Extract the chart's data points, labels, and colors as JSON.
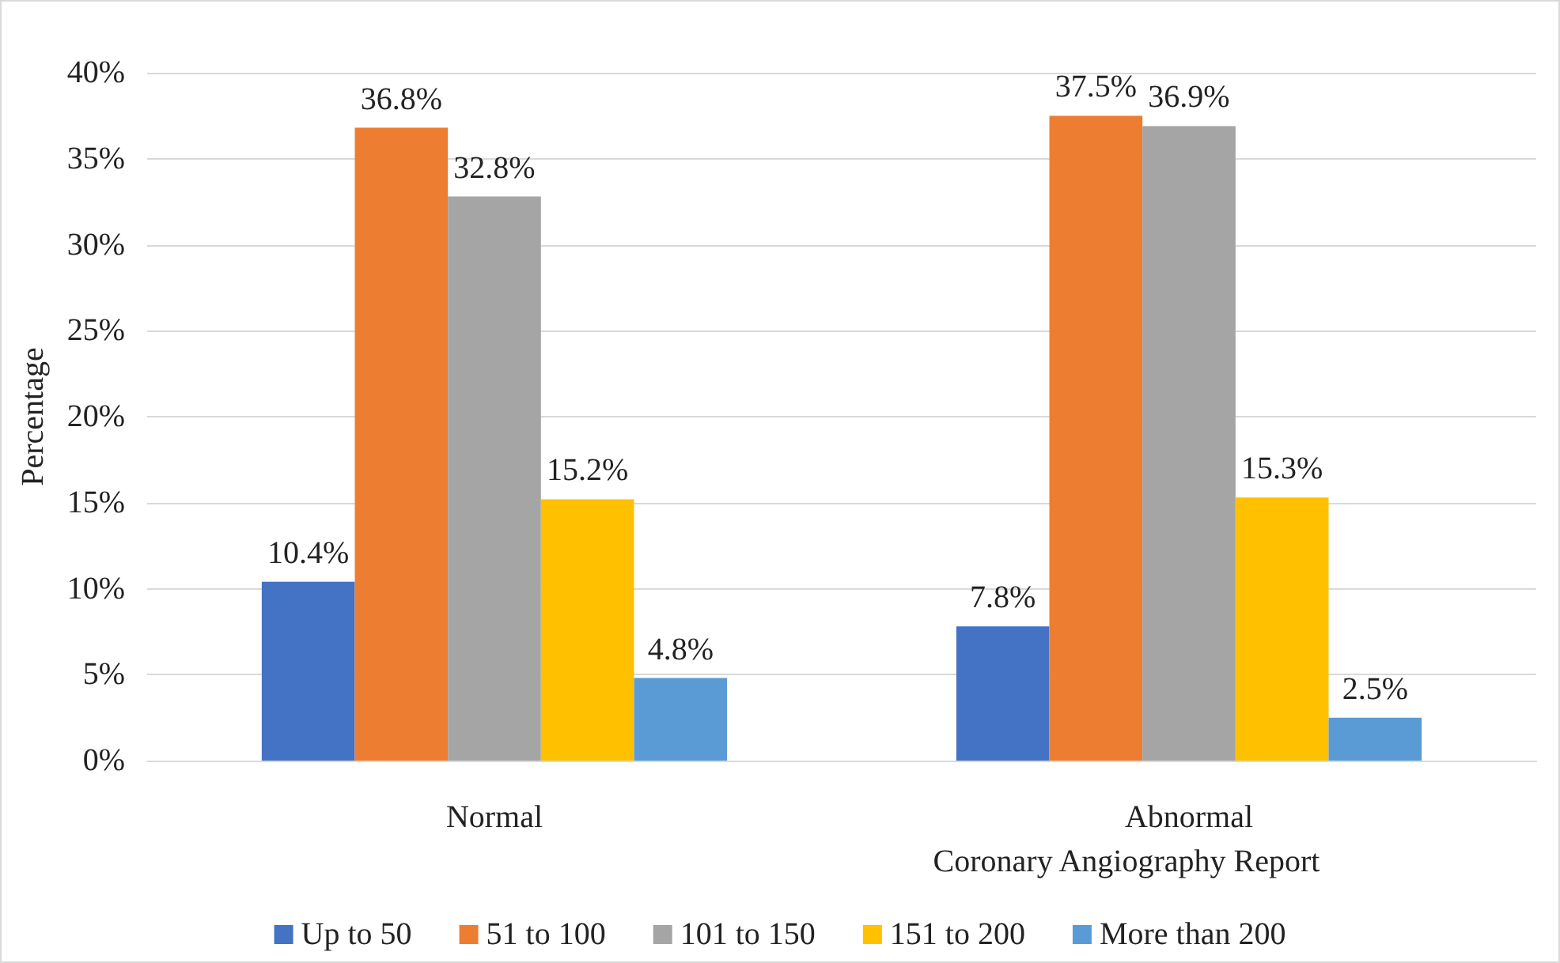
{
  "chart_data": {
    "type": "bar",
    "xlabel": "Coronary Angiography Report",
    "ylabel": "Percentage",
    "categories": [
      "Normal",
      "Abnormal"
    ],
    "series": [
      {
        "name": "Up to 50",
        "color": "#4472c4",
        "values": [
          10.4,
          7.8
        ],
        "value_labels": [
          "10.4%",
          "7.8%"
        ]
      },
      {
        "name": "51 to 100",
        "color": "#ed7d31",
        "values": [
          36.8,
          37.5
        ],
        "value_labels": [
          "36.8%",
          "37.5%"
        ]
      },
      {
        "name": "101 to 150",
        "color": "#a5a5a5",
        "values": [
          32.8,
          36.9
        ],
        "value_labels": [
          "32.8%",
          "36.9%"
        ]
      },
      {
        "name": "151 to 200",
        "color": "#ffc000",
        "values": [
          15.2,
          15.3
        ],
        "value_labels": [
          "15.2%",
          "15.3%"
        ]
      },
      {
        "name": "More than 200",
        "color": "#5b9bd5",
        "values": [
          4.8,
          2.5
        ],
        "value_labels": [
          "4.8%",
          "2.5%"
        ]
      }
    ],
    "ylim": [
      0,
      40
    ],
    "yticks": [
      {
        "value": 0,
        "label": "0%"
      },
      {
        "value": 5,
        "label": "5%"
      },
      {
        "value": 10,
        "label": "10%"
      },
      {
        "value": 15,
        "label": "15%"
      },
      {
        "value": 20,
        "label": "20%"
      },
      {
        "value": 25,
        "label": "25%"
      },
      {
        "value": 30,
        "label": "30%"
      },
      {
        "value": 35,
        "label": "35%"
      },
      {
        "value": 40,
        "label": "40%"
      }
    ],
    "grid": "y",
    "legend": "bottom"
  }
}
